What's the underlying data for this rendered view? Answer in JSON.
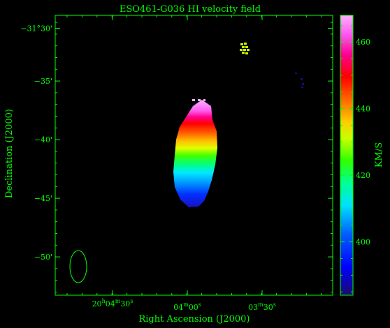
{
  "chart_data": {
    "type": "heatmap",
    "title": "ESO461-G036  HI velocity field",
    "xlabel": "Right Ascension (J2000)",
    "ylabel": "Declination (J2000)",
    "colorbar": {
      "label": "KM/S",
      "range": [
        384,
        468
      ],
      "ticks": [
        {
          "value": 400,
          "label": "400"
        },
        {
          "value": 420,
          "label": "420"
        },
        {
          "value": 440,
          "label": "440"
        },
        {
          "value": 460,
          "label": "460"
        }
      ]
    },
    "x_ticks": [
      {
        "label_main": "20",
        "sup1": "h",
        "mid": "04",
        "sup2": "m",
        "sec": "30",
        "sup3": "s"
      },
      {
        "label_main": "",
        "sup1": "",
        "mid": "04",
        "sup2": "m",
        "sec": "00",
        "sup3": "s"
      },
      {
        "label_main": "",
        "sup1": "",
        "mid": "03",
        "sup2": "m",
        "sec": "30",
        "sup3": "s"
      }
    ],
    "y_ticks": [
      {
        "value": -30.5,
        "label": "−31°30'"
      },
      {
        "value": -35,
        "label": "−35'"
      },
      {
        "value": -40,
        "label": "−40'"
      },
      {
        "value": -45,
        "label": "−45'"
      },
      {
        "value": -50,
        "label": "−50'"
      }
    ],
    "galaxy": {
      "velocity_range": [
        395,
        463
      ],
      "gradient": "increases from south (~395 km/s) to north (~463 km/s)"
    },
    "colors": {
      "axes": "#00ff00",
      "background": "#000000"
    }
  }
}
